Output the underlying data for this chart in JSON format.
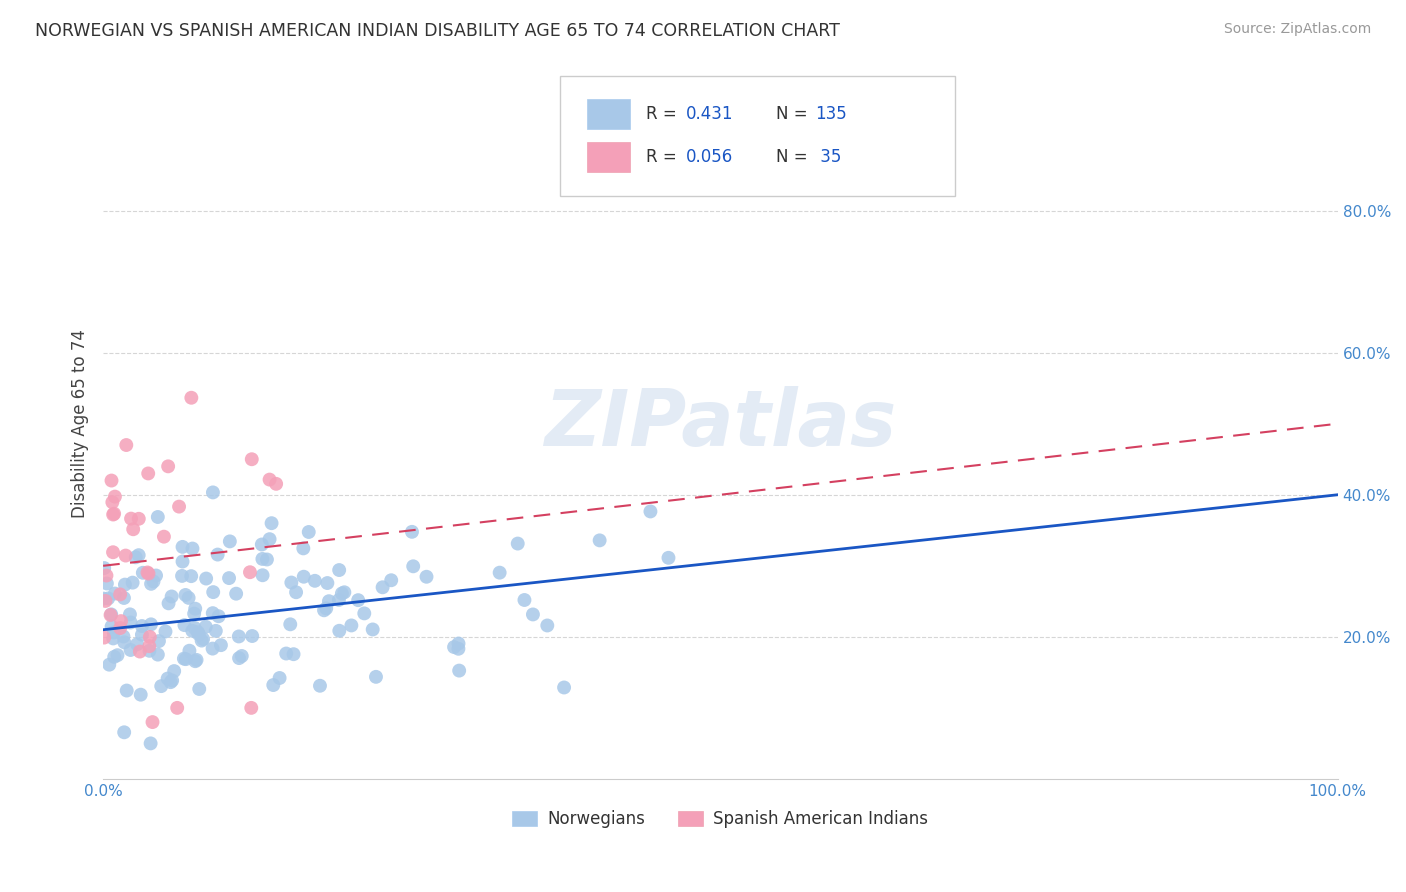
{
  "title": "NORWEGIAN VS SPANISH AMERICAN INDIAN DISABILITY AGE 65 TO 74 CORRELATION CHART",
  "source": "Source: ZipAtlas.com",
  "ylabel": "Disability Age 65 to 74",
  "legend_bottom": [
    "Norwegians",
    "Spanish American Indians"
  ],
  "r_norwegian": 0.431,
  "n_norwegian": 135,
  "r_spanish": 0.056,
  "n_spanish": 35,
  "xlim": [
    0.0,
    1.0
  ],
  "ylim": [
    0.0,
    1.0
  ],
  "xtick_positions": [
    0.0,
    1.0
  ],
  "xtick_labels": [
    "0.0%",
    "100.0%"
  ],
  "ytick_positions": [
    0.2,
    0.4,
    0.6,
    0.8
  ],
  "ytick_labels": [
    "20.0%",
    "40.0%",
    "60.0%",
    "80.0%"
  ],
  "norwegian_color": "#a8c8e8",
  "spanish_color": "#f4a0b8",
  "norwegian_line_color": "#1a56c4",
  "spanish_line_color": "#d44060",
  "watermark": "ZIPatlas",
  "background_color": "#ffffff",
  "nor_line_x0": 0.0,
  "nor_line_y0": 0.21,
  "nor_line_x1": 1.0,
  "nor_line_y1": 0.4,
  "spa_line_x0": 0.0,
  "spa_line_y0": 0.3,
  "spa_line_x1": 1.0,
  "spa_line_y1": 0.5
}
